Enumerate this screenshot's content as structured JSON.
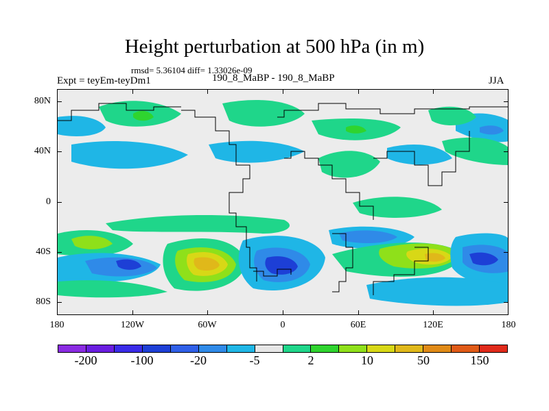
{
  "title": "Height perturbation at 500 hPa (in m)",
  "stats": "rmsd= 5.36104 diff= 1.33026e-09",
  "expt": "Expt = teyEm-teyDm1",
  "subtitle": "190_8_MaBP - 190_8_MaBP",
  "season": "JJA",
  "lat_ticks": [
    "80N",
    "40N",
    "0",
    "40S",
    "80S"
  ],
  "lon_ticks": [
    "180",
    "120W",
    "60W",
    "0",
    "60E",
    "120E",
    "180"
  ],
  "colorbar": {
    "colors": [
      "#8a2be2",
      "#6a1de0",
      "#3a2be8",
      "#1d3fd6",
      "#2f5fe8",
      "#2f8ae8",
      "#1fb6e6",
      "#e6e6e6",
      "#1fd68a",
      "#2fd42f",
      "#8fe01a",
      "#d8d816",
      "#e0b81a",
      "#e08a16",
      "#e05a16",
      "#e02a1a"
    ],
    "labels": [
      "-200",
      "-100",
      "-20",
      "-5",
      "2",
      "10",
      "50",
      "150"
    ]
  }
}
